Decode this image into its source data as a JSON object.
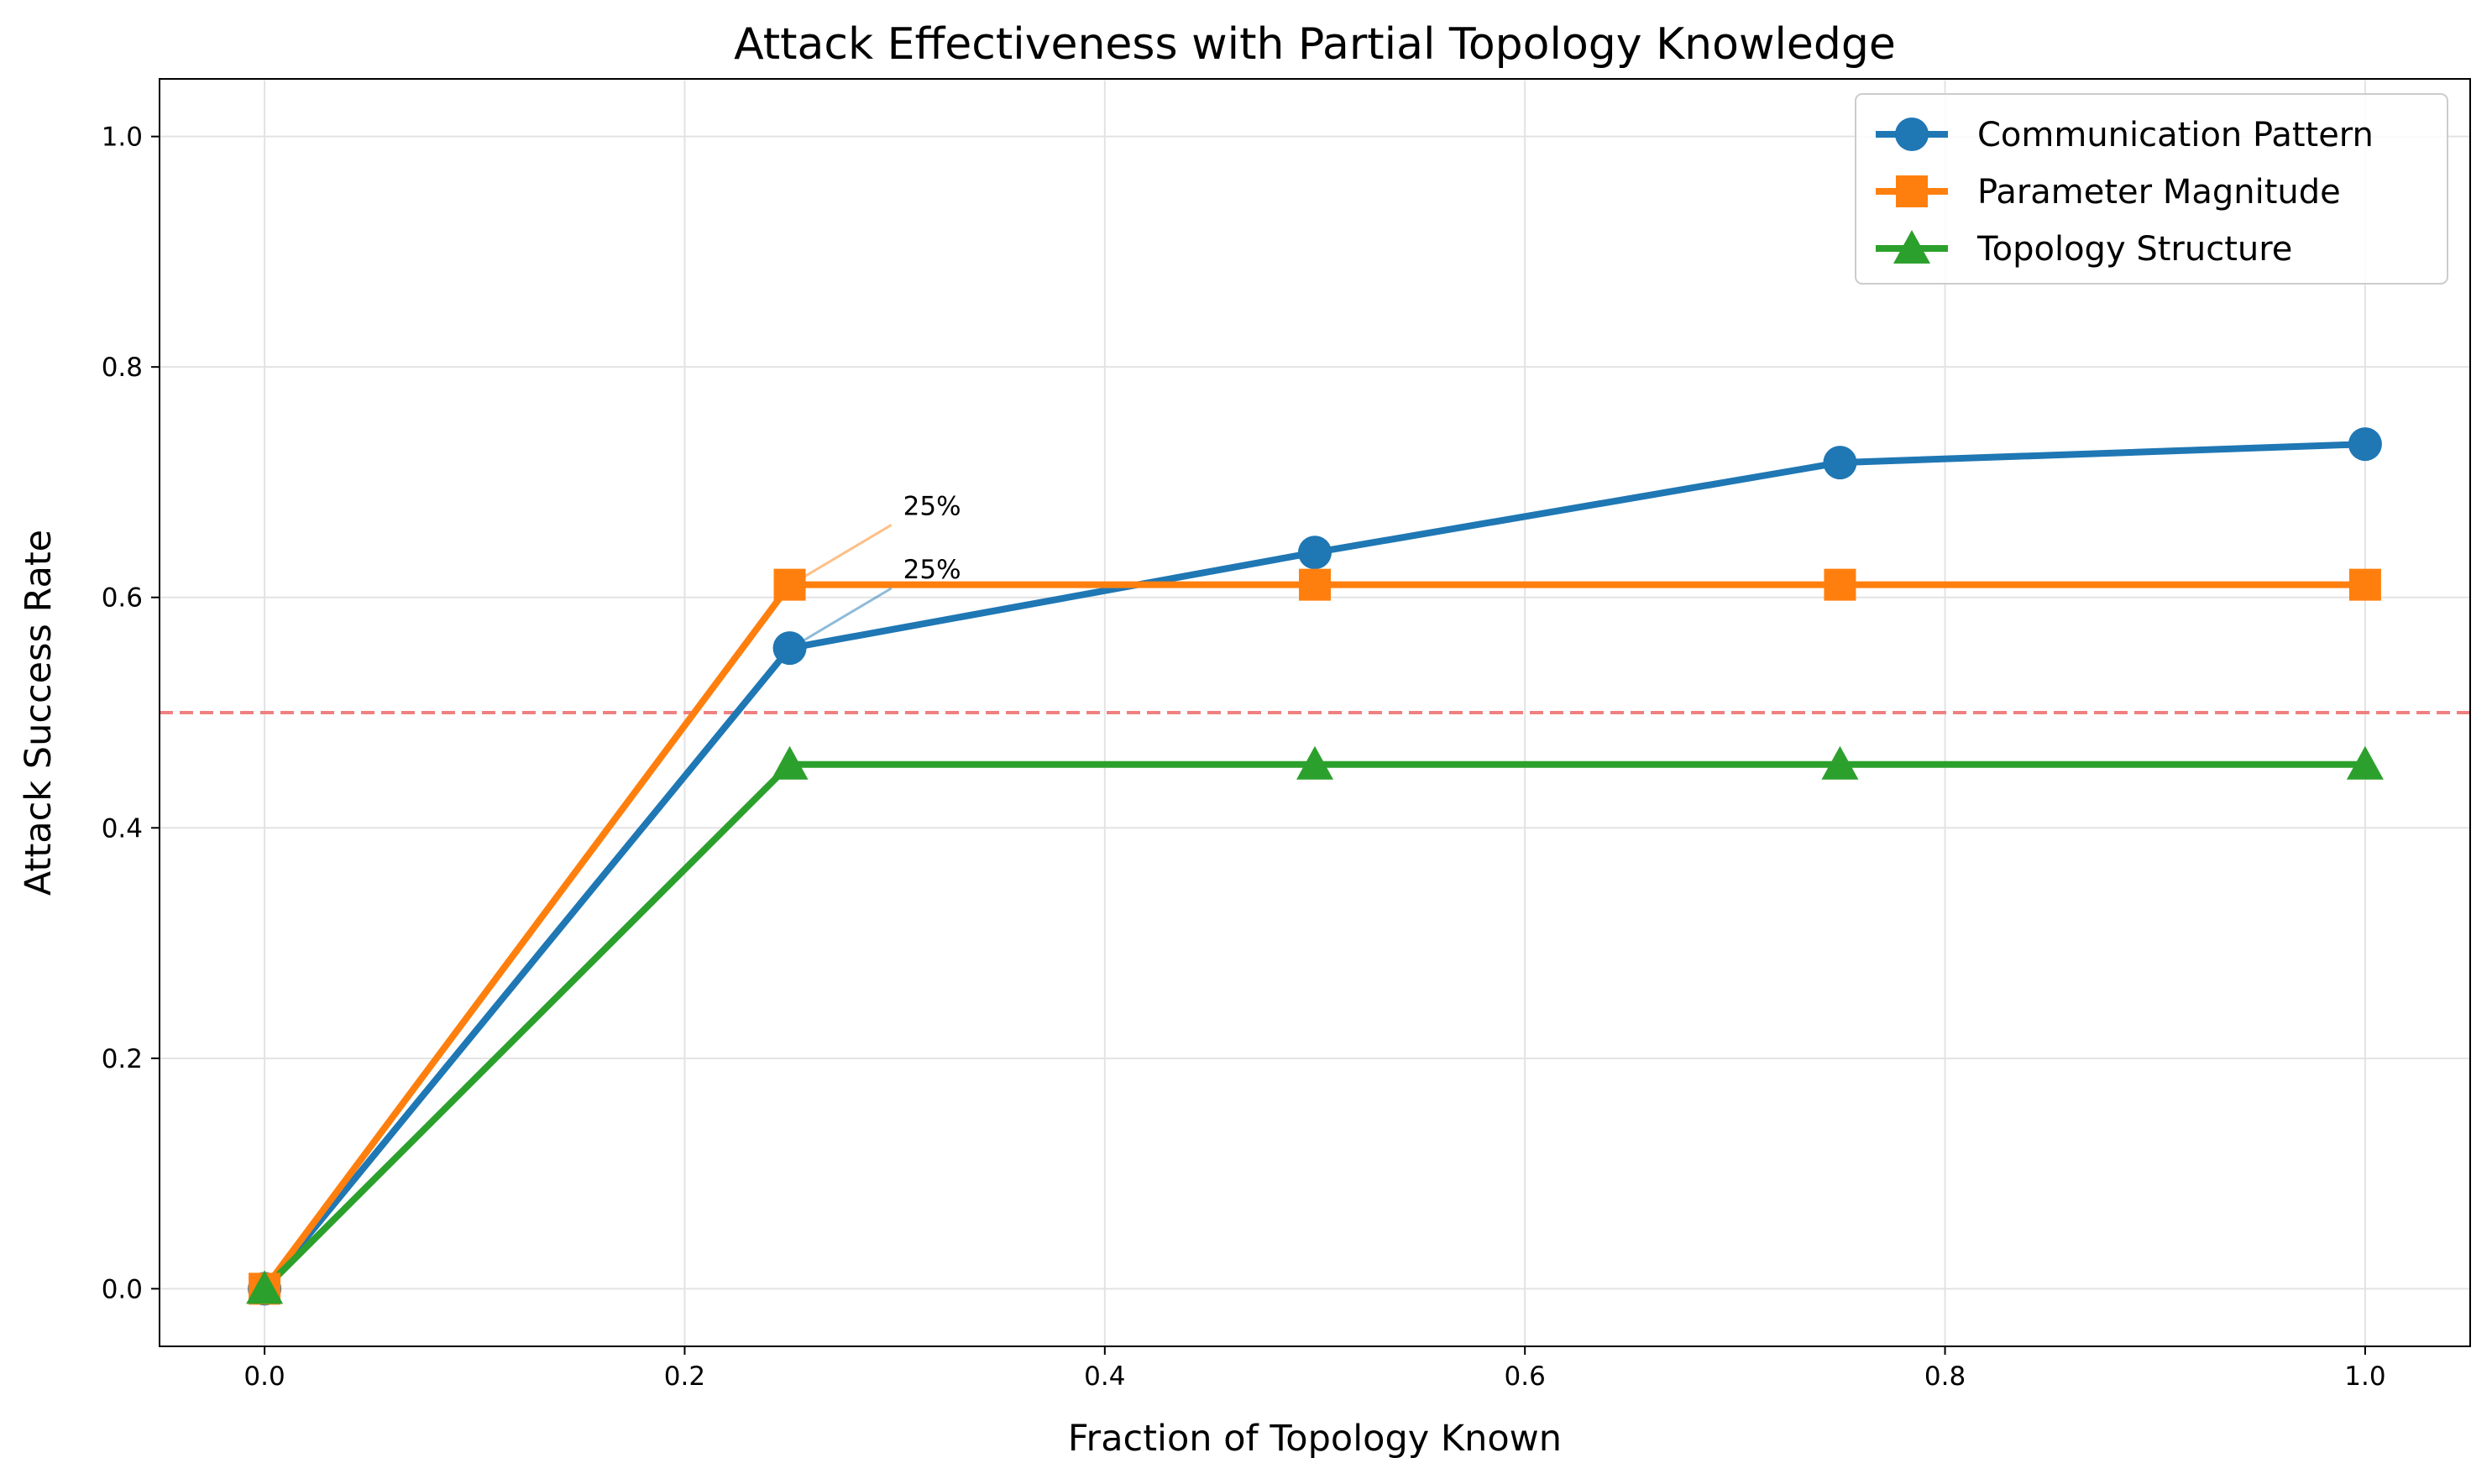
{
  "chart_data": {
    "type": "line",
    "title": "Attack Effectiveness with Partial Topology Knowledge",
    "xlabel": "Fraction of Topology Known",
    "ylabel": "Attack Success Rate",
    "xlim": [
      -0.05,
      1.05
    ],
    "ylim": [
      -0.05,
      1.05
    ],
    "x_ticks": [
      0.0,
      0.2,
      0.4,
      0.6,
      0.8,
      1.0
    ],
    "x_tick_labels": [
      "0.0",
      "0.2",
      "0.4",
      "0.6",
      "0.8",
      "1.0"
    ],
    "y_ticks": [
      0.0,
      0.2,
      0.4,
      0.6,
      0.8,
      1.0
    ],
    "y_tick_labels": [
      "0.0",
      "0.2",
      "0.4",
      "0.6",
      "0.8",
      "1.0"
    ],
    "grid": true,
    "legend_position": "top-right",
    "x": [
      0.0,
      0.25,
      0.5,
      0.75,
      1.0
    ],
    "series": [
      {
        "name": "Communication Pattern",
        "values": [
          0.0,
          0.556,
          0.639,
          0.717,
          0.733
        ],
        "color": "#1f77b4",
        "marker": "circle"
      },
      {
        "name": "Parameter Magnitude",
        "values": [
          0.0,
          0.611,
          0.611,
          0.611,
          0.611
        ],
        "color": "#ff7f0e",
        "marker": "square"
      },
      {
        "name": "Topology Structure",
        "values": [
          0.0,
          0.455,
          0.455,
          0.455,
          0.455
        ],
        "color": "#2ca02c",
        "marker": "triangle"
      }
    ],
    "reference_line": {
      "y": 0.5,
      "color": "#f08080",
      "style": "dashed"
    },
    "annotations": [
      {
        "text": "25%",
        "series": 1,
        "point_x": 0.25,
        "point_y": 0.611,
        "text_x": 0.3,
        "text_y": 0.66
      },
      {
        "text": "25%",
        "series": 0,
        "point_x": 0.25,
        "point_y": 0.556,
        "text_x": 0.3,
        "text_y": 0.605
      }
    ]
  }
}
